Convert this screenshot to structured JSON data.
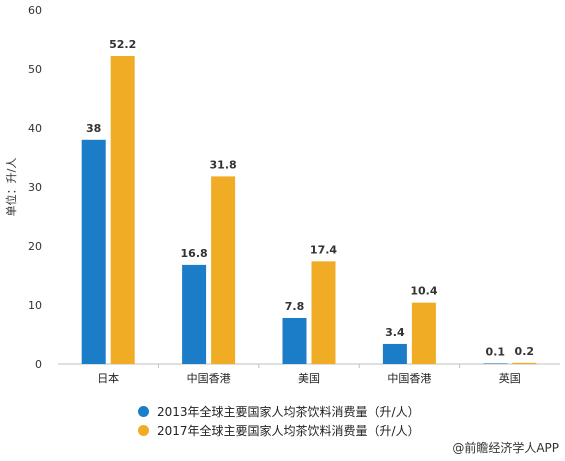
{
  "chart_data": {
    "type": "bar",
    "ylabel": "单位：升/人",
    "ylim": [
      0,
      60
    ],
    "yticks": [
      0,
      10,
      20,
      30,
      40,
      50,
      60
    ],
    "grid": false,
    "legend_position": "bottom",
    "categories": [
      "日本",
      "中国香港",
      "美国",
      "中国香港",
      "英国"
    ],
    "series": [
      {
        "name": "2013年全球主要国家人均茶饮料消费量（升/人）",
        "color": "#1b7cc7",
        "values": [
          38,
          16.8,
          7.8,
          3.4,
          0.1
        ]
      },
      {
        "name": "2017年全球主要国家人均茶饮料消费量（升/人）",
        "color": "#f0ac24",
        "values": [
          52.2,
          31.8,
          17.4,
          10.4,
          0.2
        ]
      }
    ]
  },
  "credit": "@前瞻经济学人APP"
}
